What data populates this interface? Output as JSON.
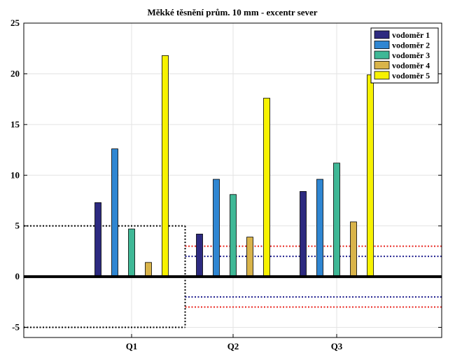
{
  "chart_data": {
    "type": "bar",
    "title": "Měkké těsnění prům. 10 mm - excentr sever",
    "xlabel": "",
    "ylabel": "",
    "categories": [
      "Q1",
      "Q2",
      "Q3"
    ],
    "ylim": [
      -6,
      25
    ],
    "yticks": [
      -5,
      0,
      5,
      10,
      15,
      20,
      25
    ],
    "grid": true,
    "legend_position": "top-right",
    "series": [
      {
        "name": "vodoměr 1",
        "color": "#2d2a80",
        "values": [
          7.3,
          4.2,
          8.4
        ]
      },
      {
        "name": "vodoměr 2",
        "color": "#2f86d2",
        "values": [
          12.6,
          9.6,
          9.6
        ]
      },
      {
        "name": "vodoměr 3",
        "color": "#3fb896",
        "values": [
          4.7,
          8.1,
          11.2
        ]
      },
      {
        "name": "vodoměr 4",
        "color": "#d9b44a",
        "values": [
          1.4,
          3.9,
          5.4
        ]
      },
      {
        "name": "vodoměr 5",
        "color": "#f7f200",
        "values": [
          21.8,
          17.6,
          19.9
        ]
      }
    ],
    "reference_lines": [
      {
        "color": "#000000",
        "style": "dotted",
        "x_from": "start",
        "x_to": "Q1-Q2 midpoint",
        "values": [
          5,
          -5
        ]
      },
      {
        "color": "#e8231c",
        "style": "dotted",
        "x_from": "Q1-Q2 midpoint",
        "x_to": "end",
        "values": [
          3,
          -3
        ]
      },
      {
        "color": "#1b1b8c",
        "style": "dotted",
        "x_from": "Q1-Q2 midpoint",
        "x_to": "end",
        "values": [
          2,
          -2
        ]
      }
    ]
  }
}
